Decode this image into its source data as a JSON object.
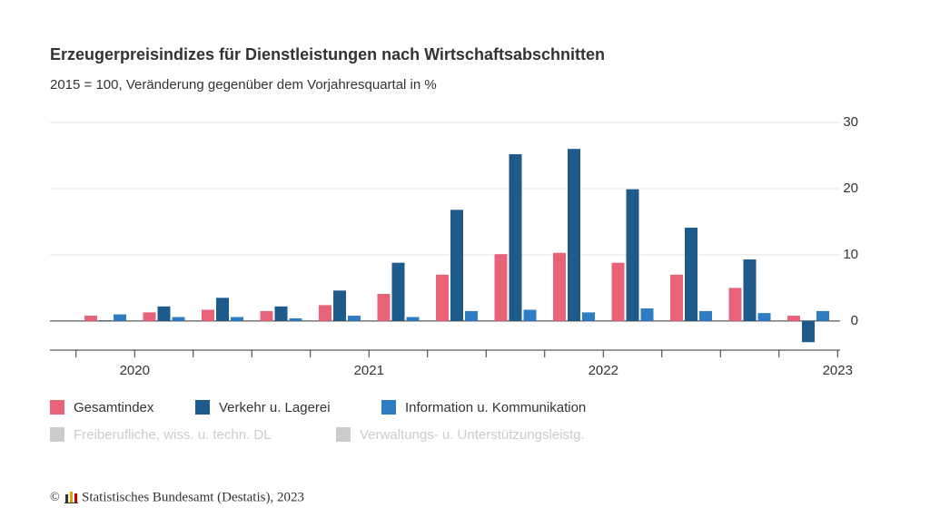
{
  "chart_data": {
    "type": "bar",
    "title": "Erzeugerpreisindizes für Dienstleistungen nach Wirtschaftsabschnitten",
    "subtitle": "2015 = 100, Veränderung gegenüber dem Vorjahresquartal in %",
    "categories": [
      null,
      null,
      null,
      null,
      null,
      null,
      null,
      null,
      null,
      null,
      null,
      null,
      null
    ],
    "year_labels": [
      "2020",
      "2021",
      "2022",
      "2023"
    ],
    "series": [
      {
        "name": "Gesamtindex",
        "color": "#e8637a",
        "values": [
          0.8,
          1.3,
          1.7,
          1.5,
          2.4,
          4.1,
          7.0,
          10.1,
          10.3,
          8.8,
          7.0,
          5.0,
          0.8
        ]
      },
      {
        "name": "Verkehr u. Lagerei",
        "color": "#1f5a8c",
        "values": [
          0.1,
          2.2,
          3.5,
          2.2,
          4.6,
          8.8,
          16.8,
          25.2,
          26.0,
          19.9,
          14.1,
          9.3,
          -3.2
        ]
      },
      {
        "name": "Information u. Kommunikation",
        "color": "#2e7dc2",
        "values": [
          1.0,
          0.6,
          0.6,
          0.4,
          0.8,
          0.6,
          1.5,
          1.7,
          1.3,
          1.9,
          1.5,
          1.2,
          1.5
        ]
      }
    ],
    "inactive_legend": {
      "color": "#cccccc",
      "names": [
        "Freiberufliche, wiss. u. techn. DL",
        "Verwaltungs- u. Unterstützungsleistg."
      ]
    },
    "ylim": [
      -4.4,
      30
    ],
    "yticks": [
      0,
      10,
      20,
      30
    ],
    "grid": true,
    "source": "Statistisches Bundesamt (Destatis), 2023"
  }
}
